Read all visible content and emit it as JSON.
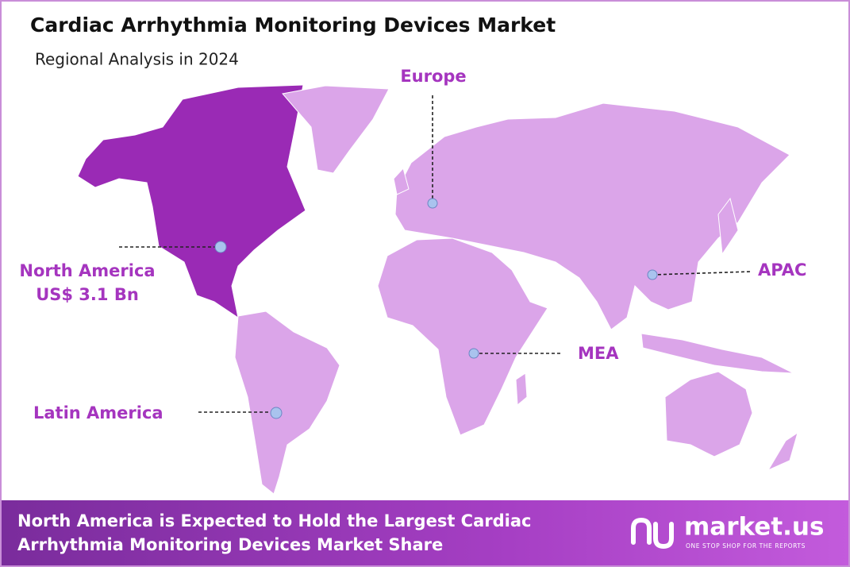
{
  "header": {
    "title": "Cardiac Arrhythmia Monitoring Devices Market",
    "subtitle": "Regional Analysis in 2024"
  },
  "regions": [
    {
      "label": "North America",
      "value": "US$ 3.1 Bn"
    },
    {
      "label": "Europe"
    },
    {
      "label": "APAC"
    },
    {
      "label": "MEA"
    },
    {
      "label": "Latin America"
    }
  ],
  "footer": {
    "lines": [
      "North America is Expected to Hold the Largest Cardiac",
      "Arrhythmia Monitoring Devices Market Share"
    ],
    "logo": {
      "name": "market.us",
      "tagline": "ONE STOP SHOP FOR THE REPORTS"
    }
  }
}
